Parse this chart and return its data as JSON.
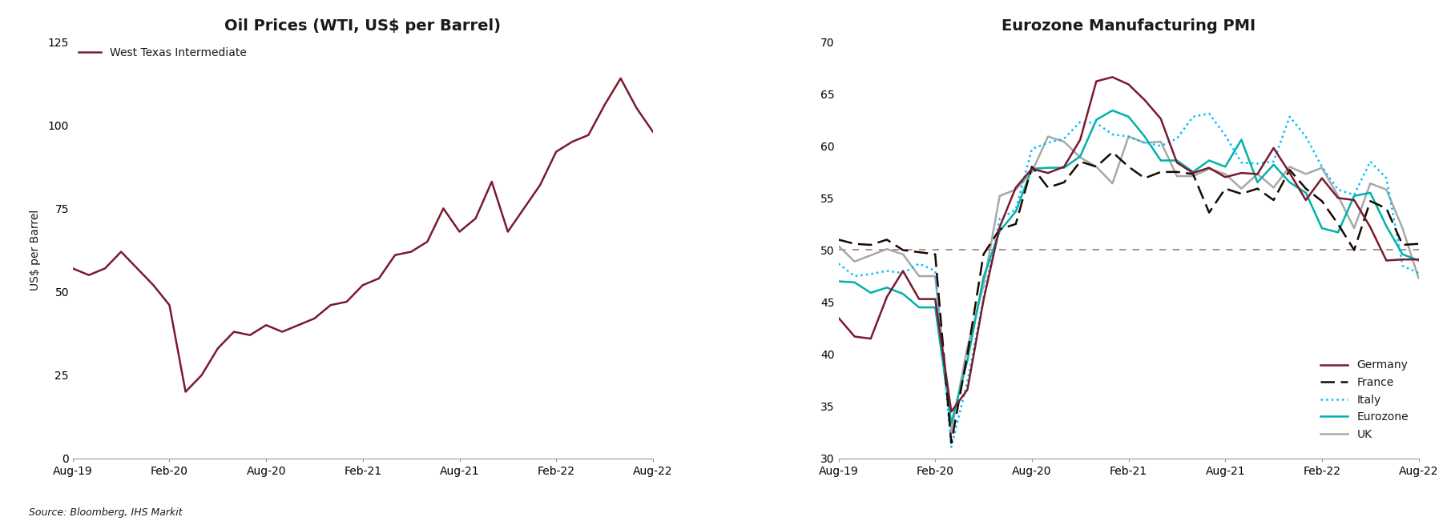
{
  "title_left": "Oil Prices (WTI, US$ per Barrel)",
  "title_right": "Eurozone Manufacturing PMI",
  "ylabel_left": "US$ per Barrel",
  "source": "Source: Bloomberg, IHS Markit",
  "line_color_wti": "#7B1A2E",
  "wti_label": "West Texas Intermediate",
  "x_labels": [
    "Aug-19",
    "Feb-20",
    "Aug-20",
    "Feb-21",
    "Aug-21",
    "Feb-22",
    "Aug-22"
  ],
  "x_tick_positions": [
    0,
    6,
    12,
    18,
    24,
    30,
    36
  ],
  "wti_y": [
    57,
    55,
    57,
    62,
    57,
    52,
    46,
    20,
    25,
    33,
    38,
    37,
    40,
    38,
    40,
    42,
    46,
    47,
    52,
    54,
    61,
    62,
    65,
    75,
    68,
    72,
    83,
    68,
    75,
    82,
    92,
    95,
    97,
    106,
    114,
    105,
    98
  ],
  "germany_y": [
    43.5,
    41.7,
    41.5,
    45.5,
    48.0,
    45.3,
    45.3,
    34.5,
    36.6,
    45.2,
    52.2,
    56.0,
    57.8,
    57.4,
    58.0,
    60.6,
    66.2,
    66.6,
    65.9,
    64.4,
    62.6,
    58.4,
    57.4,
    57.9,
    57.0,
    57.4,
    57.3,
    59.8,
    57.4,
    54.8,
    56.9,
    55.0,
    54.8,
    52.2,
    49.0,
    49.1,
    49.1
  ],
  "france_y": [
    51.0,
    50.6,
    50.5,
    51.0,
    50.0,
    49.8,
    49.6,
    31.5,
    40.0,
    49.6,
    52.0,
    52.5,
    58.0,
    56.0,
    56.5,
    58.5,
    58.0,
    59.4,
    58.0,
    56.9,
    57.5,
    57.5,
    57.3,
    53.6,
    55.9,
    55.4,
    55.9,
    54.8,
    57.7,
    55.9,
    54.7,
    52.5,
    50.0,
    54.7,
    54.0,
    50.5,
    50.6
  ],
  "italy_y": [
    48.7,
    47.5,
    47.7,
    48.0,
    47.8,
    48.7,
    48.0,
    31.1,
    37.4,
    45.4,
    53.0,
    53.9,
    59.7,
    60.3,
    60.7,
    62.3,
    62.2,
    61.1,
    60.9,
    60.3,
    60.0,
    60.7,
    62.8,
    63.1,
    61.0,
    58.4,
    58.3,
    58.5,
    62.8,
    60.9,
    58.0,
    55.8,
    55.3,
    58.5,
    56.9,
    48.5,
    47.8
  ],
  "eurozone_y": [
    47.0,
    46.9,
    45.9,
    46.4,
    45.8,
    44.5,
    44.5,
    33.4,
    39.4,
    47.4,
    51.8,
    53.7,
    57.8,
    57.9,
    57.9,
    59.0,
    62.5,
    63.4,
    62.8,
    60.9,
    58.6,
    58.6,
    57.5,
    58.6,
    58.0,
    60.6,
    56.5,
    58.2,
    56.5,
    55.5,
    52.1,
    51.7,
    55.2,
    55.5,
    52.3,
    49.6,
    49.0
  ],
  "uk_y": [
    50.4,
    48.9,
    49.5,
    50.1,
    49.6,
    47.5,
    47.5,
    32.6,
    40.7,
    46.6,
    55.2,
    55.8,
    57.5,
    60.9,
    60.4,
    58.9,
    58.0,
    56.4,
    60.9,
    60.3,
    60.4,
    57.1,
    57.1,
    57.8,
    57.3,
    55.9,
    57.3,
    56.0,
    58.0,
    57.3,
    57.9,
    55.2,
    52.1,
    56.4,
    55.8,
    52.1,
    47.3
  ],
  "germany_color": "#7B1A2E",
  "france_color": "#1a0a00",
  "italy_color": "#00BFFF",
  "eurozone_color": "#00B2AA",
  "uk_color": "#A8A8A8",
  "pmi_ref_line": 50,
  "pmi_ref_color": "#9B7B7B",
  "ylim_left": [
    0,
    125
  ],
  "ylim_right": [
    30,
    70
  ],
  "yticks_left": [
    0,
    25,
    50,
    75,
    100,
    125
  ],
  "yticks_right": [
    30,
    35,
    40,
    45,
    50,
    55,
    60,
    65,
    70
  ],
  "background_color": "#FFFFFF",
  "title_fontsize": 14,
  "label_fontsize": 10,
  "tick_fontsize": 10
}
